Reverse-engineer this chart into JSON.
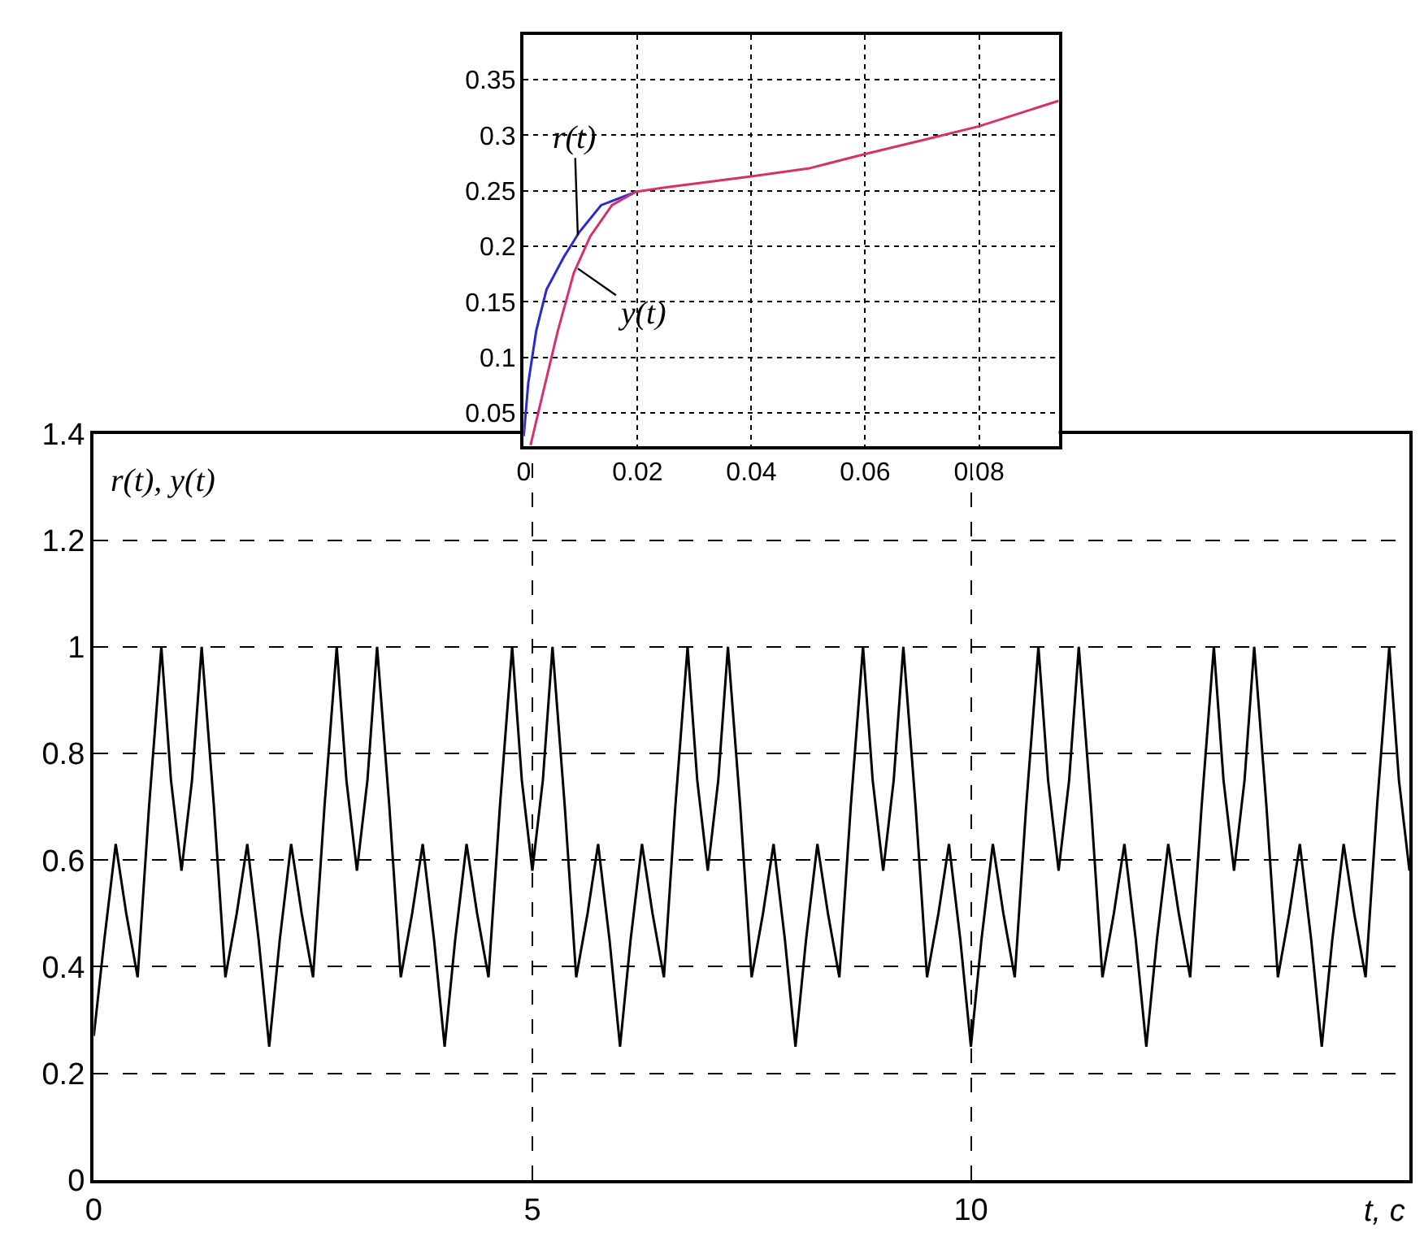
{
  "chart_data": [
    {
      "type": "line",
      "ylabel": "r(t), y(t)",
      "xlabel": "t, c",
      "xlim": [
        0,
        15
      ],
      "ylim": [
        0,
        1.4
      ],
      "xticks": [
        0,
        5,
        10
      ],
      "yticks": [
        0,
        0.2,
        0.4,
        0.6,
        0.8,
        1,
        1.2,
        1.4
      ],
      "grid": true,
      "line_style": "solid",
      "series": [
        {
          "color": "#000000",
          "x": [
            0,
            0.12,
            0.25,
            0.37,
            0.5,
            0.63,
            0.77,
            0.88,
            1,
            1.12,
            1.23,
            1.37,
            1.5,
            1.63,
            1.75,
            1.88,
            2,
            2.12,
            2.25,
            2.37,
            2.5,
            2.63,
            2.77,
            2.88,
            3,
            3.12,
            3.23,
            3.37,
            3.5,
            3.63,
            3.75,
            3.88,
            4,
            4.12,
            4.25,
            4.37,
            4.5,
            4.63,
            4.77,
            4.88,
            5,
            5.12,
            5.23,
            5.37,
            5.5,
            5.63,
            5.75,
            5.88,
            6,
            6.12,
            6.25,
            6.37,
            6.5,
            6.63,
            6.77,
            6.88,
            7,
            7.12,
            7.23,
            7.37,
            7.5,
            7.63,
            7.75,
            7.88,
            8,
            8.12,
            8.25,
            8.37,
            8.5,
            8.63,
            8.77,
            8.88,
            9,
            9.12,
            9.23,
            9.37,
            9.5,
            9.63,
            9.75,
            9.88,
            10,
            10.12,
            10.25,
            10.37,
            10.5,
            10.63,
            10.77,
            10.88,
            11,
            11.12,
            11.23,
            11.37,
            11.5,
            11.63,
            11.75,
            11.88,
            12,
            12.12,
            12.25,
            12.37,
            12.5,
            12.63,
            12.77,
            12.88,
            13,
            13.12,
            13.23,
            13.37,
            13.5,
            13.63,
            13.75,
            13.88,
            14,
            14.12,
            14.25,
            14.37,
            14.5,
            14.63,
            14.77,
            14.88,
            15
          ],
          "values": [
            0.27,
            0.45,
            0.63,
            0.5,
            0.38,
            0.7,
            1.0,
            0.75,
            0.58,
            0.75,
            1.0,
            0.7,
            0.38,
            0.5,
            0.63,
            0.45,
            0.25,
            0.45,
            0.63,
            0.5,
            0.38,
            0.7,
            1.0,
            0.75,
            0.58,
            0.75,
            1.0,
            0.7,
            0.38,
            0.5,
            0.63,
            0.45,
            0.25,
            0.45,
            0.63,
            0.5,
            0.38,
            0.7,
            1.0,
            0.75,
            0.58,
            0.75,
            1.0,
            0.7,
            0.38,
            0.5,
            0.63,
            0.45,
            0.25,
            0.45,
            0.63,
            0.5,
            0.38,
            0.7,
            1.0,
            0.75,
            0.58,
            0.75,
            1.0,
            0.7,
            0.38,
            0.5,
            0.63,
            0.45,
            0.25,
            0.45,
            0.63,
            0.5,
            0.38,
            0.7,
            1.0,
            0.75,
            0.58,
            0.75,
            1.0,
            0.7,
            0.38,
            0.5,
            0.63,
            0.45,
            0.25,
            0.45,
            0.63,
            0.5,
            0.38,
            0.7,
            1.0,
            0.75,
            0.58,
            0.75,
            1.0,
            0.7,
            0.38,
            0.5,
            0.63,
            0.45,
            0.25,
            0.45,
            0.63,
            0.5,
            0.38,
            0.7,
            1.0,
            0.75,
            0.58,
            0.75,
            1.0,
            0.7,
            0.38,
            0.5,
            0.63,
            0.45,
            0.25,
            0.45,
            0.63,
            0.5,
            0.38,
            0.7,
            1.0,
            0.75,
            0.58
          ]
        }
      ]
    },
    {
      "type": "line",
      "xlim": [
        0,
        0.094
      ],
      "ylim": [
        0.02,
        0.39
      ],
      "xticks": [
        0,
        0.02,
        0.04,
        0.06,
        0.08
      ],
      "yticks": [
        0.05,
        0.1,
        0.15,
        0.2,
        0.25,
        0.3,
        0.35
      ],
      "grid": true,
      "line_style": "solid",
      "annotations": [
        {
          "text": "r(t)",
          "x": 0.0095,
          "y": 0.21
        },
        {
          "text": "y(t)",
          "x": 0.0095,
          "y": 0.18
        }
      ],
      "series": [
        {
          "color": "#2a2ad0",
          "x": [
            0,
            0.0008,
            0.0022,
            0.004,
            0.007,
            0.0098,
            0.0136,
            0.0197
          ],
          "values": [
            0.029,
            0.077,
            0.124,
            0.161,
            0.19,
            0.213,
            0.237,
            0.249
          ]
        },
        {
          "color": "#d8306a",
          "x": [
            0.0012,
            0.0031,
            0.006,
            0.0088,
            0.0117,
            0.0155,
            0.0197,
            0.025,
            0.04,
            0.05,
            0.06,
            0.0705,
            0.08,
            0.094
          ],
          "values": [
            0.021,
            0.062,
            0.124,
            0.176,
            0.209,
            0.237,
            0.249,
            0.253,
            0.263,
            0.27,
            0.283,
            0.296,
            0.308,
            0.331
          ]
        }
      ]
    }
  ]
}
